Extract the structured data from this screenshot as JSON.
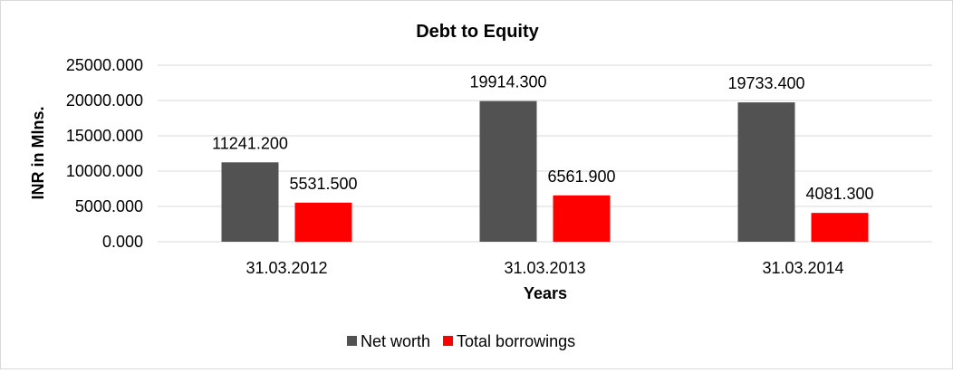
{
  "chart_data": {
    "type": "bar",
    "title": "Debt to Equity",
    "xlabel": "Years",
    "ylabel": "INR in Mlns.",
    "categories": [
      "31.03.2012",
      "31.03.2013",
      "31.03.2014"
    ],
    "series": [
      {
        "name": "Net worth",
        "color": "#525252",
        "values": [
          11241.2,
          19914.3,
          19733.4
        ],
        "labels": [
          "11241.200",
          "19914.300",
          "19733.400"
        ]
      },
      {
        "name": "Total borrowings",
        "color": "#ff0000",
        "values": [
          5531.5,
          6561.9,
          4081.3
        ],
        "labels": [
          "5531.500",
          "6561.900",
          "4081.300"
        ]
      }
    ],
    "ylim": [
      0,
      25000
    ],
    "yticks": [
      "0.000",
      "5000.000",
      "10000.000",
      "15000.000",
      "20000.000",
      "25000.000"
    ],
    "grid": true,
    "legend": "bottom"
  }
}
